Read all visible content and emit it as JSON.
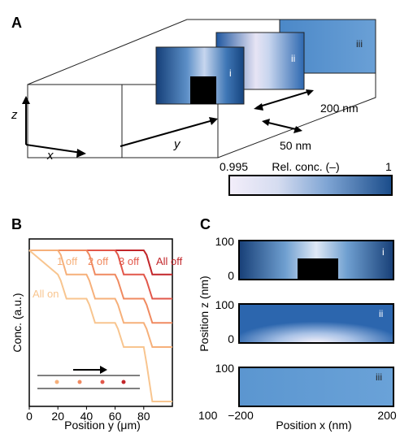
{
  "panel_a": {
    "label": "A",
    "axes": {
      "z": "z",
      "x": "x",
      "y": "y"
    },
    "slices": [
      "i",
      "ii",
      "iii"
    ],
    "scale_200": "200 nm",
    "scale_50": "50 nm",
    "colorbar": {
      "title": "Rel. conc. (–)",
      "min": "0.995",
      "max": "1",
      "colors": [
        "#f3eefa",
        "#1a4c8a"
      ]
    }
  },
  "panel_b": {
    "label": "B",
    "ylabel": "Conc. (a.u.)",
    "xlabel": "Position y (μm)",
    "xticks": [
      "0",
      "20",
      "40",
      "60",
      "80"
    ],
    "annotations": [
      "1 off",
      "2 off",
      "3 off",
      "All off",
      "All on"
    ],
    "colors": {
      "all_off": "#c2262a",
      "three_off": "#e2574a",
      "two_off": "#f08a60",
      "one_off": "#f6b07a",
      "all_on": "#f8c58f"
    },
    "chart_data": {
      "type": "line",
      "xlim": [
        0,
        100
      ],
      "series": [
        {
          "name": "All off",
          "x": [
            0,
            80,
            82,
            86,
            100
          ],
          "y": [
            1.0,
            1.0,
            0.97,
            0.84,
            0.84
          ]
        },
        {
          "name": "3 off",
          "x": [
            0,
            60,
            62,
            66,
            80,
            82,
            86,
            100
          ],
          "y": [
            1.0,
            1.0,
            0.97,
            0.84,
            0.84,
            0.8,
            0.68,
            0.68
          ]
        },
        {
          "name": "2 off",
          "x": [
            0,
            40,
            42,
            46,
            60,
            62,
            66,
            80,
            82,
            86,
            100
          ],
          "y": [
            1.0,
            1.0,
            0.97,
            0.84,
            0.84,
            0.8,
            0.68,
            0.68,
            0.64,
            0.52,
            0.52
          ]
        },
        {
          "name": "1 off",
          "x": [
            0,
            20,
            22,
            26,
            40,
            42,
            46,
            60,
            62,
            66,
            80,
            82,
            86,
            100
          ],
          "y": [
            1.0,
            1.0,
            0.97,
            0.84,
            0.84,
            0.8,
            0.68,
            0.68,
            0.64,
            0.52,
            0.52,
            0.48,
            0.36,
            0.36
          ]
        },
        {
          "name": "All on",
          "x": [
            0,
            20,
            22,
            26,
            40,
            42,
            46,
            60,
            62,
            66,
            80,
            82,
            86,
            100
          ],
          "y": [
            1.0,
            0.84,
            0.8,
            0.68,
            0.68,
            0.64,
            0.52,
            0.52,
            0.48,
            0.36,
            0.36,
            0.25,
            0.0,
            0.0
          ]
        }
      ]
    }
  },
  "panel_c": {
    "label": "C",
    "ylabel": "Position z (nm)",
    "xlabel": "Position x (nm)",
    "ytick_top": "100",
    "ytick_bottom": "0",
    "xtick_left": "−200",
    "xtick_right": "200",
    "outer_tick": "100",
    "heatmaps": [
      {
        "label": "i"
      },
      {
        "label": "ii"
      },
      {
        "label": "iii"
      }
    ]
  }
}
